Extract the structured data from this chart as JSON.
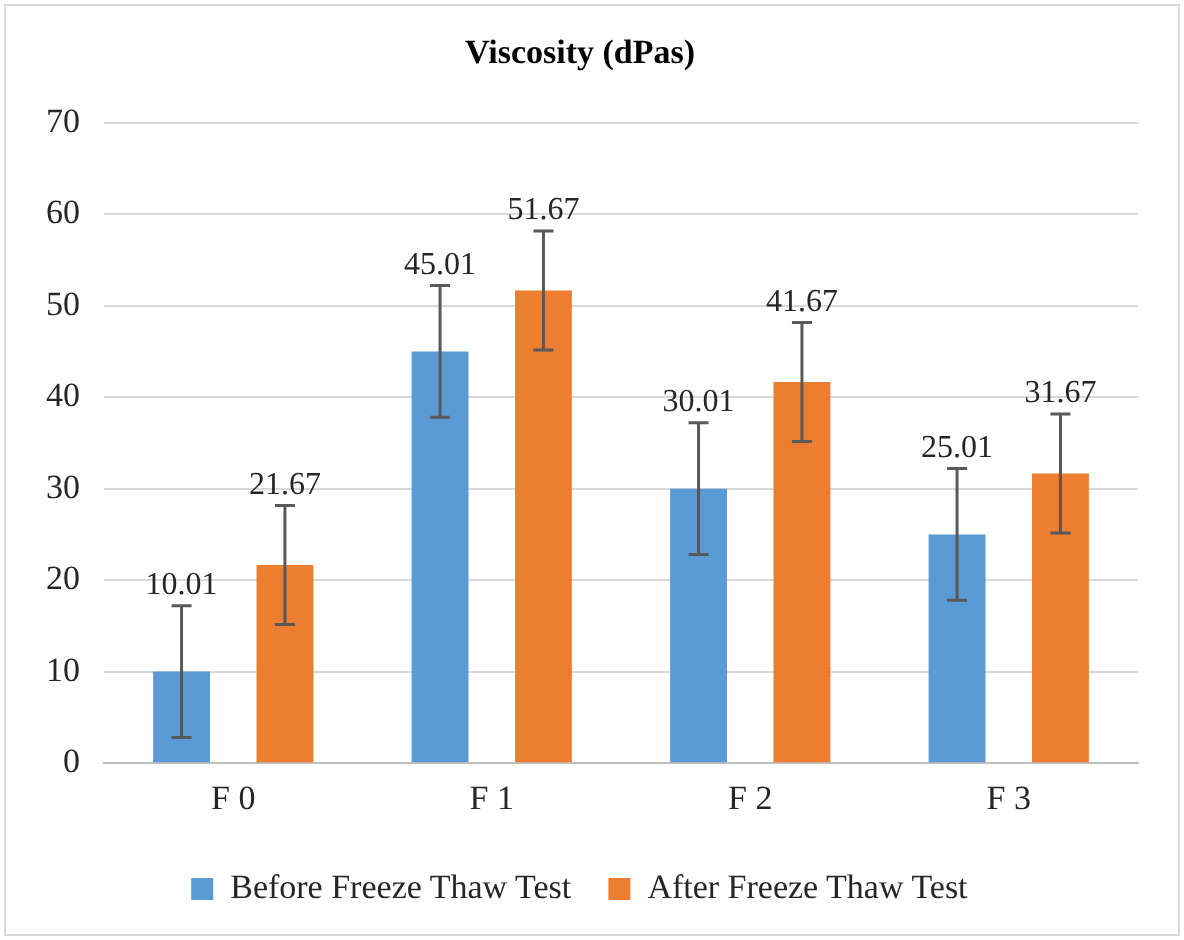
{
  "chart_data": {
    "type": "bar",
    "title": "Viscosity (dPas)",
    "categories": [
      "F 0",
      "F 1",
      "F 2",
      "F 3"
    ],
    "series": [
      {
        "name": "Before Freeze Thaw Test",
        "color": "#5b9bd5",
        "values": [
          10.01,
          45.01,
          30.01,
          25.01
        ],
        "errors": [
          7.2,
          7.2,
          7.2,
          7.2
        ]
      },
      {
        "name": "After Freeze Thaw Test",
        "color": "#ed7d31",
        "values": [
          21.67,
          51.67,
          41.67,
          31.67
        ],
        "errors": [
          6.5,
          6.5,
          6.5,
          6.5
        ]
      }
    ],
    "ylim": [
      0,
      70
    ],
    "yticks": [
      0,
      10,
      20,
      30,
      40,
      50,
      60,
      70
    ],
    "grid": "y",
    "legend": "bottom",
    "data_labels": true
  }
}
